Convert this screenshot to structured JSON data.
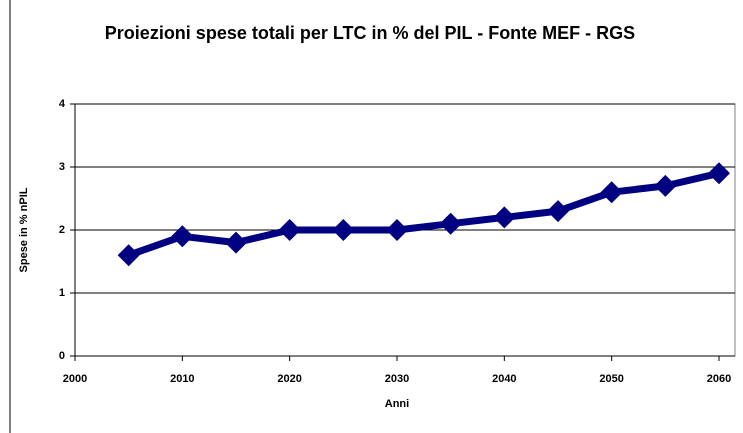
{
  "chart_data": {
    "type": "line",
    "title": "Proiezioni spese totali per LTC in % del PIL - Fonte MEF - RGS",
    "xlabel": "Anni",
    "ylabel": "Spese in % nPIL",
    "x": [
      2005,
      2010,
      2015,
      2020,
      2025,
      2030,
      2035,
      2040,
      2045,
      2050,
      2055,
      2060
    ],
    "series": [
      {
        "name": "Spese",
        "color": "#000080",
        "values": [
          1.6,
          1.9,
          1.8,
          2.0,
          2.0,
          2.0,
          2.1,
          2.2,
          2.3,
          2.6,
          2.7,
          2.9
        ]
      }
    ],
    "xlim": [
      2000,
      2060
    ],
    "xticks": [
      2000,
      2010,
      2020,
      2030,
      2040,
      2050,
      2060
    ],
    "ylim": [
      0,
      4
    ],
    "yticks": [
      0,
      1,
      2,
      3,
      4
    ],
    "grid": true,
    "legend": false
  }
}
